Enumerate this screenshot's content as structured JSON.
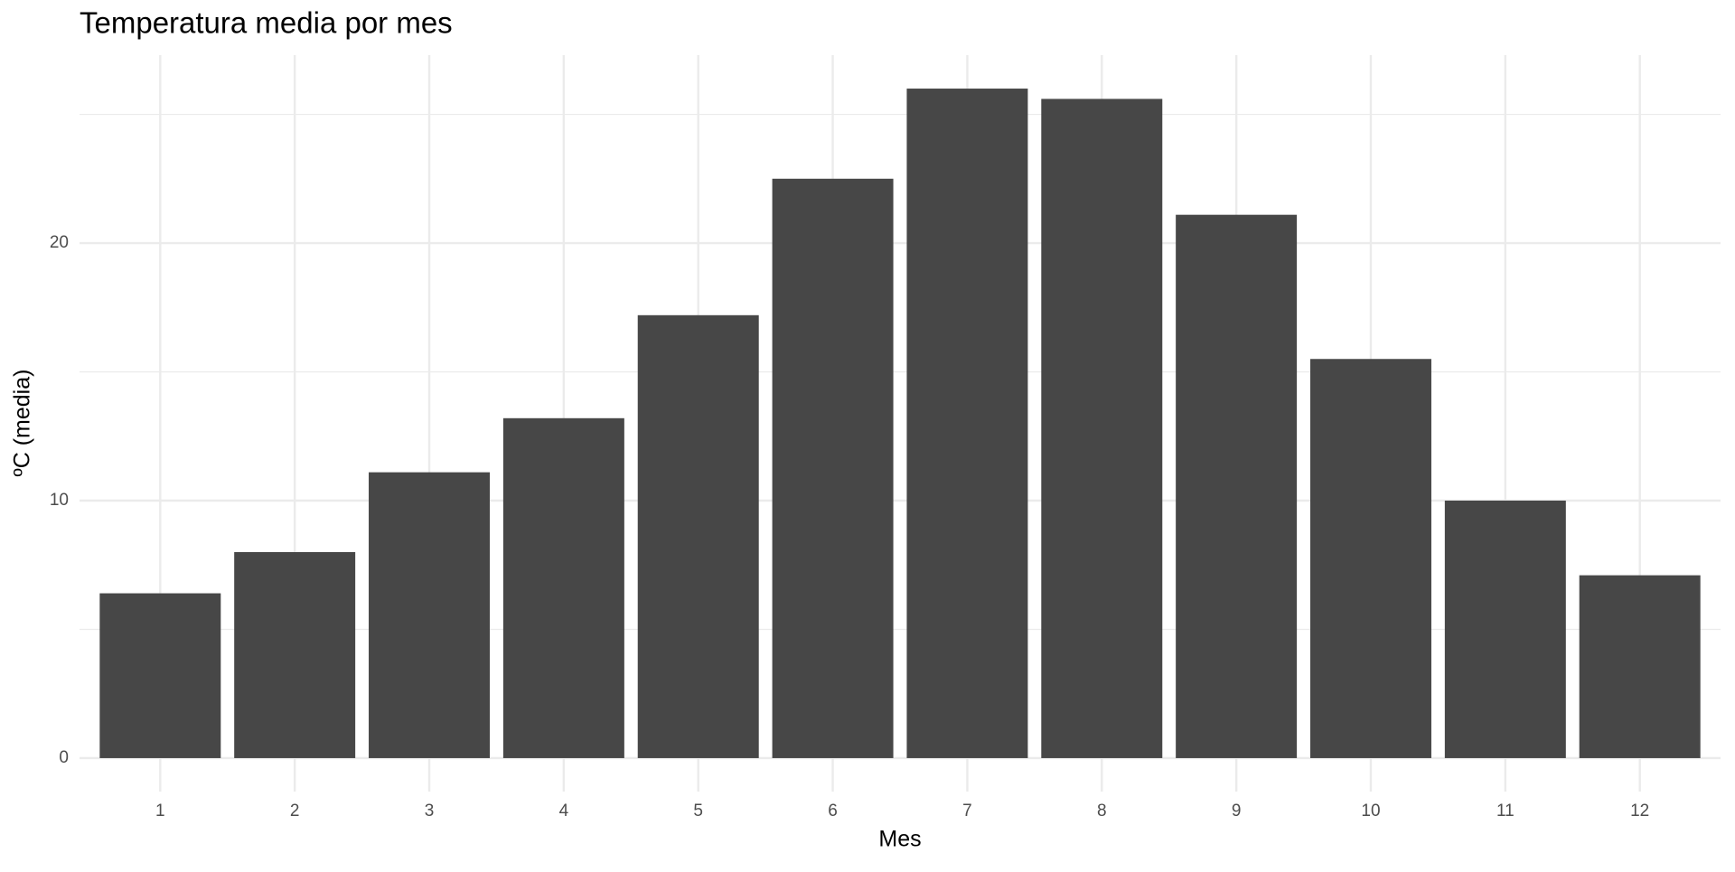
{
  "chart_data": {
    "type": "bar",
    "title": "Temperatura media por mes",
    "x_label": "Mes",
    "y_label": "ºC (media)",
    "categories": [
      "1",
      "2",
      "3",
      "4",
      "5",
      "6",
      "7",
      "8",
      "9",
      "10",
      "11",
      "12"
    ],
    "values": [
      6.4,
      8.0,
      11.1,
      13.2,
      17.2,
      22.5,
      26.0,
      25.6,
      21.1,
      15.5,
      10.0,
      7.1
    ],
    "color": "#474747",
    "ylim": [
      -1.3,
      27.3
    ],
    "yticks": [
      0,
      10,
      20
    ],
    "minor_yticks": [
      5,
      15,
      25
    ],
    "grid": true
  }
}
